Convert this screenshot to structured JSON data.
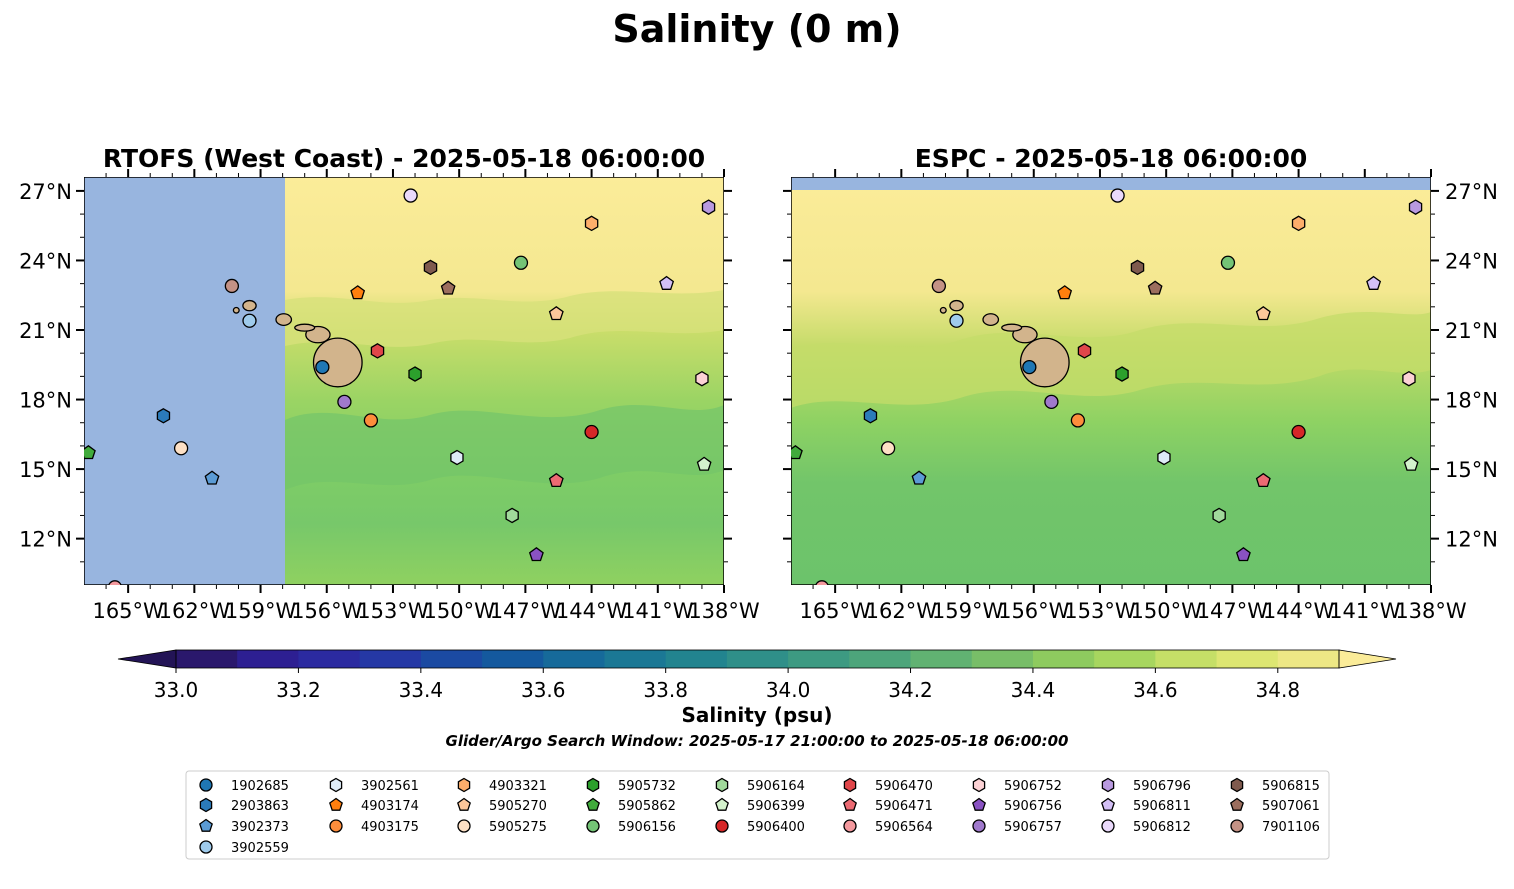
{
  "title": "Salinity (0 m)",
  "panels": [
    {
      "title": "RTOFS (West Coast) - 2025-05-18 06:00:00",
      "model": "RTOFS"
    },
    {
      "title": "ESPC - 2025-05-18 06:00:00",
      "model": "ESPC"
    }
  ],
  "axes": {
    "x_ticks": [
      "165°W",
      "162°W",
      "159°W",
      "156°W",
      "153°W",
      "150°W",
      "147°W",
      "144°W",
      "141°W",
      "138°W"
    ],
    "y_ticks": [
      "27°N",
      "24°N",
      "21°N",
      "18°N",
      "15°N",
      "12°N"
    ],
    "lon_range": [
      -167,
      -138
    ],
    "lat_range": [
      10,
      27.6
    ]
  },
  "colorbar": {
    "label": "Salinity (psu)",
    "ticks": [
      "33.0",
      "33.2",
      "33.4",
      "33.6",
      "33.8",
      "34.0",
      "34.2",
      "34.4",
      "34.6",
      "34.8"
    ],
    "range": [
      33.0,
      34.9
    ],
    "colormap": "viridis-like (dark purple to pale yellow)",
    "extend": "both"
  },
  "search_window": "Glider/Argo Search Window: 2025-05-17 21:00:00 to 2025-05-18 06:00:00",
  "colors": {
    "no_data_blue": "#98b5df",
    "land_tan": "#d2b48c",
    "high_salinity_yellow": "#fbec99"
  },
  "chart_data": {
    "type": "map",
    "legend": [
      {
        "id": "1902685",
        "marker": "circle",
        "color": "#1f77b4"
      },
      {
        "id": "2903863",
        "marker": "hexagon",
        "color": "#2b7bba"
      },
      {
        "id": "3902373",
        "marker": "pentagon",
        "color": "#5b9bd5"
      },
      {
        "id": "3902559",
        "marker": "circle",
        "color": "#9fcbec"
      },
      {
        "id": "3902561",
        "marker": "hexagon",
        "color": "#deebf7"
      },
      {
        "id": "4903174",
        "marker": "pentagon",
        "color": "#ff7f0e"
      },
      {
        "id": "4903175",
        "marker": "circle",
        "color": "#fd8d3c"
      },
      {
        "id": "4903321",
        "marker": "hexagon",
        "color": "#fdae6b"
      },
      {
        "id": "5905270",
        "marker": "pentagon",
        "color": "#fdc79a"
      },
      {
        "id": "5905275",
        "marker": "circle",
        "color": "#fde0c5"
      },
      {
        "id": "5905732",
        "marker": "hexagon",
        "color": "#2ca02c"
      },
      {
        "id": "5905862",
        "marker": "pentagon",
        "color": "#41ab3c"
      },
      {
        "id": "5906156",
        "marker": "circle",
        "color": "#74c476"
      },
      {
        "id": "5906164",
        "marker": "hexagon",
        "color": "#a1d99b"
      },
      {
        "id": "5906399",
        "marker": "pentagon",
        "color": "#d4f2cc"
      },
      {
        "id": "5906400",
        "marker": "circle",
        "color": "#d62728"
      },
      {
        "id": "5906470",
        "marker": "hexagon",
        "color": "#e0464a"
      },
      {
        "id": "5906471",
        "marker": "pentagon",
        "color": "#ec6a73"
      },
      {
        "id": "5906564",
        "marker": "circle",
        "color": "#f4999e"
      },
      {
        "id": "5906752",
        "marker": "hexagon",
        "color": "#fcd2d5"
      },
      {
        "id": "5906756",
        "marker": "pentagon",
        "color": "#8a52c3"
      },
      {
        "id": "5906757",
        "marker": "circle",
        "color": "#a079cc"
      },
      {
        "id": "5906796",
        "marker": "hexagon",
        "color": "#b99ae0"
      },
      {
        "id": "5906811",
        "marker": "pentagon",
        "color": "#d3bff5"
      },
      {
        "id": "5906812",
        "marker": "circle",
        "color": "#ead9fb"
      },
      {
        "id": "5906815",
        "marker": "hexagon",
        "color": "#7f5a4e"
      },
      {
        "id": "5907061",
        "marker": "pentagon",
        "color": "#9c6e5e"
      },
      {
        "id": "7901106",
        "marker": "circle",
        "color": "#c49285"
      }
    ],
    "floats": [
      {
        "id": "1902685",
        "lon": -156.2,
        "lat": 19.4
      },
      {
        "id": "2903863",
        "lon": -163.4,
        "lat": 17.3
      },
      {
        "id": "3902373",
        "lon": -161.2,
        "lat": 14.6
      },
      {
        "id": "3902559",
        "lon": -159.5,
        "lat": 21.4
      },
      {
        "id": "3902561",
        "lon": -150.1,
        "lat": 15.5
      },
      {
        "id": "4903174",
        "lon": -154.6,
        "lat": 22.6
      },
      {
        "id": "4903175",
        "lon": -154.0,
        "lat": 17.1
      },
      {
        "id": "4903321",
        "lon": -144.0,
        "lat": 25.6
      },
      {
        "id": "5905270",
        "lon": -145.6,
        "lat": 21.7
      },
      {
        "id": "5905275",
        "lon": -162.6,
        "lat": 15.9
      },
      {
        "id": "5905732",
        "lon": -152.0,
        "lat": 19.1
      },
      {
        "id": "5905862",
        "lon": -166.8,
        "lat": 15.7
      },
      {
        "id": "5906156",
        "lon": -147.2,
        "lat": 23.9
      },
      {
        "id": "5906164",
        "lon": -147.6,
        "lat": 13.0
      },
      {
        "id": "5906399",
        "lon": -138.9,
        "lat": 15.2
      },
      {
        "id": "5906400",
        "lon": -144.0,
        "lat": 16.6
      },
      {
        "id": "5906470",
        "lon": -153.7,
        "lat": 20.1
      },
      {
        "id": "5906471",
        "lon": -145.6,
        "lat": 14.5
      },
      {
        "id": "5906564",
        "lon": -165.6,
        "lat": 9.9
      },
      {
        "id": "5906752",
        "lon": -139.0,
        "lat": 18.9
      },
      {
        "id": "5906756",
        "lon": -146.5,
        "lat": 11.3
      },
      {
        "id": "5906757",
        "lon": -155.2,
        "lat": 17.9
      },
      {
        "id": "5906796",
        "lon": -138.7,
        "lat": 26.3
      },
      {
        "id": "5906811",
        "lon": -140.6,
        "lat": 23.0
      },
      {
        "id": "5906812",
        "lon": -152.2,
        "lat": 26.8
      },
      {
        "id": "5906815",
        "lon": -151.3,
        "lat": 23.7
      },
      {
        "id": "5907061",
        "lon": -150.5,
        "lat": 22.8
      },
      {
        "id": "7901106",
        "lon": -160.3,
        "lat": 22.9
      }
    ]
  }
}
